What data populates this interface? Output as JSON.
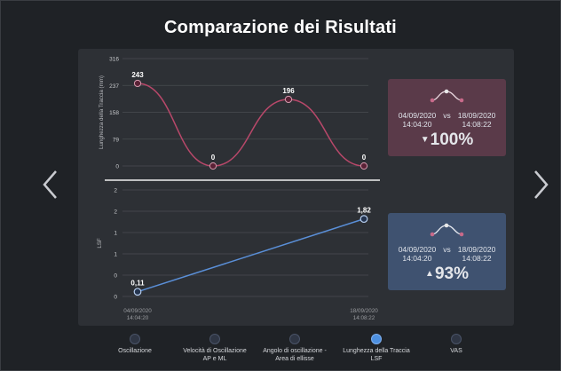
{
  "title": "Comparazione dei Risultati",
  "colors": {
    "line_top": "#b8486a",
    "line_bottom": "#5a8fd8",
    "card_red": "#5a3a49",
    "card_blue": "#3f5270"
  },
  "chart_data": [
    {
      "type": "line",
      "ylabel": "Lunghezza della Traccia (mm)",
      "y_ticks": [
        "316",
        "237",
        "158",
        "79",
        "0"
      ],
      "ylim": [
        0,
        316
      ],
      "smooth": true,
      "points": [
        {
          "x": 0,
          "y": 243,
          "label": "243"
        },
        {
          "x": 1,
          "y": 0,
          "label": "0"
        },
        {
          "x": 2,
          "y": 196,
          "label": "196"
        },
        {
          "x": 3,
          "y": 0,
          "label": "0"
        }
      ]
    },
    {
      "type": "line",
      "ylabel": "LSF",
      "y_ticks": [
        "2",
        "2",
        "1",
        "1",
        "0",
        "0"
      ],
      "ylim": [
        0,
        2.5
      ],
      "points": [
        {
          "x": 0,
          "y": 0.11,
          "label": "0,11"
        },
        {
          "x": 1,
          "y": 1.82,
          "label": "1,82"
        }
      ],
      "x_ticks": [
        {
          "date": "04/09/2020",
          "time": "14:04:20"
        },
        {
          "date": "18/09/2020",
          "time": "14:08:22"
        }
      ]
    }
  ],
  "cards": [
    {
      "date1": "04/09/2020",
      "time1": "14:04:20",
      "vs": "vs",
      "date2": "18/09/2020",
      "time2": "14:08:22",
      "arrow": "▼",
      "percent": "100%"
    },
    {
      "date1": "04/09/2020",
      "time1": "14:04:20",
      "vs": "vs",
      "date2": "18/09/2020",
      "time2": "14:08:22",
      "arrow": "▲",
      "percent": "93%"
    }
  ],
  "nav": [
    {
      "label_line1": "Oscillazione",
      "label_line2": "",
      "active": false
    },
    {
      "label_line1": "Velocità di Oscillazione",
      "label_line2": "AP e ML",
      "active": false
    },
    {
      "label_line1": "Angolo di oscillazione -",
      "label_line2": "Area di ellisse",
      "active": false
    },
    {
      "label_line1": "Lunghezza della Traccia",
      "label_line2": "LSF",
      "active": true
    },
    {
      "label_line1": "VAS",
      "label_line2": "",
      "active": false
    }
  ]
}
